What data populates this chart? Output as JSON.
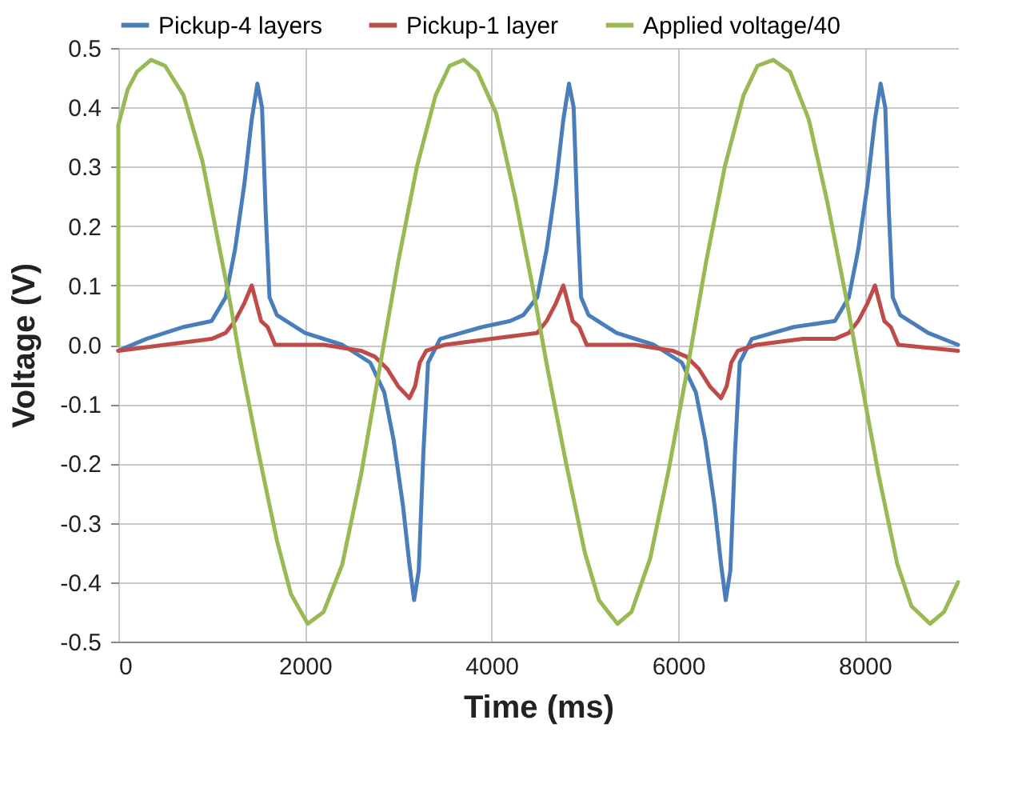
{
  "chart_data": {
    "type": "line",
    "xlabel": "Time (ms)",
    "ylabel": "Voltage (V)",
    "xlim": [
      0,
      9000
    ],
    "xticks": [
      0,
      2000,
      4000,
      6000,
      8000
    ],
    "ylim": [
      -0.5,
      0.5
    ],
    "yticks": [
      0.5,
      0.4,
      0.3,
      0.2,
      0.1,
      {
        "value": 0,
        "label": "0.0"
      },
      -0.1,
      -0.2,
      -0.3,
      -0.4,
      -0.5
    ],
    "grid": true,
    "legend": "top",
    "marker": "none",
    "line_style": "solid",
    "series": [
      {
        "name": "Pickup-4 layers",
        "color": "#4a7ebb",
        "x": [
          0,
          300,
          700,
          1000,
          1150,
          1250,
          1350,
          1430,
          1490,
          1540,
          1580,
          1620,
          1700,
          2000,
          2400,
          2700,
          2850,
          2950,
          3050,
          3120,
          3170,
          3220,
          3270,
          3320,
          3450,
          3900,
          4200,
          4340,
          4490,
          4590,
          4690,
          4770,
          4830,
          4880,
          4920,
          4960,
          5040,
          5340,
          5740,
          6040,
          6190,
          6290,
          6390,
          6460,
          6510,
          6560,
          6610,
          6660,
          6790,
          7240,
          7680,
          7830,
          7930,
          8030,
          8110,
          8170,
          8220,
          8260,
          8300,
          8380,
          8680,
          9000
        ],
        "values": [
          -0.01,
          0.01,
          0.03,
          0.04,
          0.08,
          0.16,
          0.27,
          0.38,
          0.44,
          0.4,
          0.22,
          0.08,
          0.05,
          0.02,
          0,
          -0.03,
          -0.08,
          -0.16,
          -0.27,
          -0.37,
          -0.43,
          -0.38,
          -0.18,
          -0.03,
          0.01,
          0.03,
          0.04,
          0.05,
          0.08,
          0.16,
          0.27,
          0.38,
          0.44,
          0.4,
          0.22,
          0.08,
          0.05,
          0.02,
          0,
          -0.03,
          -0.08,
          -0.16,
          -0.27,
          -0.37,
          -0.43,
          -0.38,
          -0.18,
          -0.03,
          0.01,
          0.03,
          0.04,
          0.08,
          0.16,
          0.27,
          0.38,
          0.44,
          0.4,
          0.22,
          0.08,
          0.05,
          0.02,
          0
        ]
      },
      {
        "name": "Pickup-1 layer",
        "color": "#be4b48",
        "x": [
          0,
          500,
          1000,
          1150,
          1250,
          1350,
          1430,
          1480,
          1530,
          1600,
          1680,
          2200,
          2600,
          2750,
          2880,
          3000,
          3120,
          3180,
          3230,
          3300,
          3500,
          4000,
          4490,
          4590,
          4690,
          4770,
          4820,
          4870,
          4940,
          5020,
          5540,
          5940,
          6090,
          6220,
          6340,
          6460,
          6520,
          6570,
          6640,
          6840,
          7340,
          7680,
          7830,
          7930,
          8030,
          8110,
          8160,
          8210,
          8280,
          8360,
          9000
        ],
        "values": [
          -0.01,
          0,
          0.01,
          0.02,
          0.04,
          0.07,
          0.1,
          0.07,
          0.04,
          0.03,
          0,
          0,
          -0.01,
          -0.02,
          -0.04,
          -0.07,
          -0.09,
          -0.07,
          -0.03,
          -0.01,
          0,
          0.01,
          0.02,
          0.04,
          0.07,
          0.1,
          0.07,
          0.04,
          0.03,
          0,
          0,
          -0.01,
          -0.02,
          -0.04,
          -0.07,
          -0.09,
          -0.07,
          -0.03,
          -0.01,
          0,
          0.01,
          0.01,
          0.02,
          0.04,
          0.07,
          0.1,
          0.07,
          0.04,
          0.03,
          0,
          -0.01
        ]
      },
      {
        "name": "Applied voltage/40",
        "color": "#98b954",
        "x": [
          0,
          0,
          100,
          200,
          350,
          500,
          700,
          900,
          1100,
          1200,
          1300,
          1500,
          1700,
          1850,
          2030,
          2200,
          2400,
          2600,
          2800,
          3000,
          3200,
          3400,
          3550,
          3700,
          3850,
          4050,
          4250,
          4450,
          4600,
          4800,
          5000,
          5150,
          5350,
          5500,
          5700,
          5900,
          6100,
          6300,
          6500,
          6700,
          6850,
          7020,
          7200,
          7400,
          7600,
          7800,
          7950,
          8150,
          8350,
          8500,
          8700,
          8850,
          9000
        ],
        "values": [
          0,
          0.37,
          0.43,
          0.46,
          0.48,
          0.47,
          0.42,
          0.31,
          0.15,
          0.07,
          -0.02,
          -0.18,
          -0.33,
          -0.42,
          -0.47,
          -0.45,
          -0.37,
          -0.22,
          -0.04,
          0.14,
          0.3,
          0.42,
          0.47,
          0.48,
          0.46,
          0.39,
          0.25,
          0.09,
          -0.04,
          -0.2,
          -0.35,
          -0.43,
          -0.47,
          -0.45,
          -0.36,
          -0.21,
          -0.04,
          0.14,
          0.3,
          0.42,
          0.47,
          0.48,
          0.46,
          0.38,
          0.24,
          0.08,
          -0.05,
          -0.22,
          -0.37,
          -0.44,
          -0.47,
          -0.45,
          -0.4
        ]
      }
    ]
  }
}
